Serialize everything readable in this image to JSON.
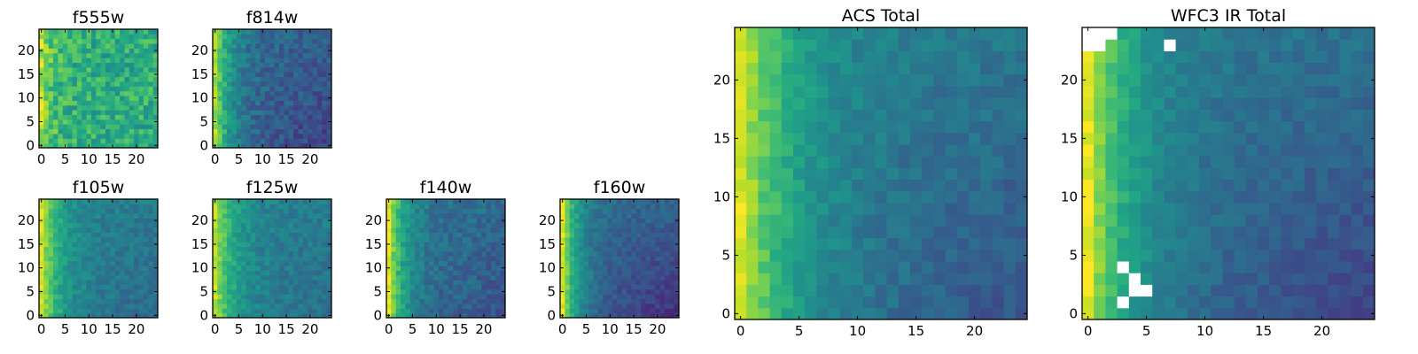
{
  "chart_data": [
    {
      "type": "heatmap",
      "title": "f555w",
      "colormap": "viridis",
      "grid": false,
      "xlim": [
        -0.5,
        24.5
      ],
      "ylim": [
        -0.5,
        24.5
      ],
      "xticks": [
        0,
        5,
        10,
        15,
        20
      ],
      "yticks": [
        0,
        5,
        10,
        15,
        20
      ],
      "tick_labels": [
        "0",
        "5",
        "10",
        "15",
        "20"
      ],
      "pattern": {
        "base": 0.62,
        "left_glow": 0.25,
        "glow_width": 2.5,
        "bottom_dip": 0.0,
        "noise": 0.28,
        "seed": 11
      }
    },
    {
      "type": "heatmap",
      "title": "f814w",
      "colormap": "viridis",
      "grid": false,
      "xlim": [
        -0.5,
        24.5
      ],
      "ylim": [
        -0.5,
        24.5
      ],
      "xticks": [
        0,
        5,
        10,
        15,
        20
      ],
      "yticks": [
        0,
        5,
        10,
        15,
        20
      ],
      "tick_labels": [
        "0",
        "5",
        "10",
        "15",
        "20"
      ],
      "pattern": {
        "base": 0.32,
        "left_glow": 0.55,
        "glow_width": 3.5,
        "bottom_dip": 0.12,
        "noise": 0.18,
        "seed": 23
      }
    },
    {
      "type": "heatmap",
      "title": "f105w",
      "colormap": "viridis",
      "grid": false,
      "xlim": [
        -0.5,
        24.5
      ],
      "ylim": [
        -0.5,
        24.5
      ],
      "xticks": [
        0,
        5,
        10,
        15,
        20
      ],
      "yticks": [
        0,
        5,
        10,
        15,
        20
      ],
      "tick_labels": [
        "0",
        "5",
        "10",
        "15",
        "20"
      ],
      "pattern": {
        "base": 0.42,
        "left_glow": 0.5,
        "glow_width": 4.0,
        "bottom_dip": 0.08,
        "noise": 0.14,
        "seed": 37
      }
    },
    {
      "type": "heatmap",
      "title": "f125w",
      "colormap": "viridis",
      "grid": false,
      "xlim": [
        -0.5,
        24.5
      ],
      "ylim": [
        -0.5,
        24.5
      ],
      "xticks": [
        0,
        5,
        10,
        15,
        20
      ],
      "yticks": [
        0,
        5,
        10,
        15,
        20
      ],
      "tick_labels": [
        "0",
        "5",
        "10",
        "15",
        "20"
      ],
      "pattern": {
        "base": 0.42,
        "left_glow": 0.48,
        "glow_width": 4.0,
        "bottom_dip": 0.06,
        "noise": 0.14,
        "seed": 41
      }
    },
    {
      "type": "heatmap",
      "title": "f140w",
      "colormap": "viridis",
      "grid": false,
      "xlim": [
        -0.5,
        24.5
      ],
      "ylim": [
        -0.5,
        24.5
      ],
      "xticks": [
        0,
        5,
        10,
        15,
        20
      ],
      "yticks": [
        0,
        5,
        10,
        15,
        20
      ],
      "tick_labels": [
        "0",
        "5",
        "10",
        "15",
        "20"
      ],
      "pattern": {
        "base": 0.36,
        "left_glow": 0.6,
        "glow_width": 3.2,
        "bottom_dip": 0.1,
        "noise": 0.16,
        "seed": 53
      }
    },
    {
      "type": "heatmap",
      "title": "f160w",
      "colormap": "viridis",
      "grid": false,
      "xlim": [
        -0.5,
        24.5
      ],
      "ylim": [
        -0.5,
        24.5
      ],
      "xticks": [
        0,
        5,
        10,
        15,
        20
      ],
      "yticks": [
        0,
        5,
        10,
        15,
        20
      ],
      "tick_labels": [
        "0",
        "5",
        "10",
        "15",
        "20"
      ],
      "pattern": {
        "base": 0.33,
        "left_glow": 0.62,
        "glow_width": 3.2,
        "bottom_dip": 0.2,
        "noise": 0.12,
        "seed": 67
      }
    },
    {
      "type": "heatmap",
      "title": "ACS Total",
      "colormap": "viridis",
      "grid": false,
      "xlim": [
        -0.5,
        24.5
      ],
      "ylim": [
        -0.5,
        24.5
      ],
      "xticks": [
        0,
        5,
        10,
        15,
        20
      ],
      "yticks": [
        0,
        5,
        10,
        15,
        20
      ],
      "tick_labels": [
        "0",
        "5",
        "10",
        "15",
        "20"
      ],
      "pattern": {
        "base": 0.4,
        "left_glow": 0.55,
        "glow_width": 4.5,
        "bottom_dip": 0.14,
        "noise": 0.12,
        "seed": 79
      }
    },
    {
      "type": "heatmap",
      "title": "WFC3 IR Total",
      "colormap": "viridis",
      "grid": false,
      "xlim": [
        -0.5,
        24.5
      ],
      "ylim": [
        -0.5,
        24.5
      ],
      "xticks": [
        0,
        5,
        10,
        15,
        20
      ],
      "yticks": [
        0,
        5,
        10,
        15,
        20
      ],
      "tick_labels": [
        "0",
        "5",
        "10",
        "15",
        "20"
      ],
      "masked_cells": [
        [
          0,
          24
        ],
        [
          1,
          24
        ],
        [
          2,
          24
        ],
        [
          0,
          23
        ],
        [
          1,
          23
        ],
        [
          7,
          23
        ],
        [
          3,
          4
        ],
        [
          4,
          3
        ],
        [
          4,
          2
        ],
        [
          5,
          2
        ],
        [
          3,
          1
        ]
      ],
      "pattern": {
        "base": 0.38,
        "left_glow": 0.58,
        "glow_width": 3.6,
        "bottom_dip": 0.18,
        "noise": 0.1,
        "seed": 97
      }
    }
  ]
}
